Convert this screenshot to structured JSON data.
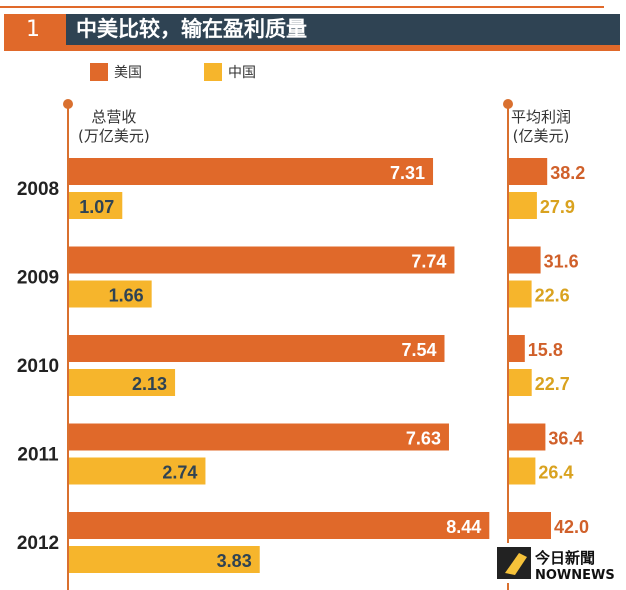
{
  "header": {
    "number": "1",
    "title": "中美比较，输在盈利质量"
  },
  "colors": {
    "us": "#e0692a",
    "china": "#f6b52c",
    "band": "#2f4353"
  },
  "chart_data": [
    {
      "type": "bar",
      "orientation": "horizontal",
      "title": "总营收",
      "unit": "(万亿美元)",
      "categories": [
        "2008",
        "2009",
        "2010",
        "2011",
        "2012"
      ],
      "series": [
        {
          "name": "美国",
          "values": [
            7.31,
            7.74,
            7.54,
            7.63,
            8.44
          ]
        },
        {
          "name": "中国",
          "values": [
            1.07,
            1.66,
            2.13,
            2.74,
            3.83
          ]
        }
      ]
    },
    {
      "type": "bar",
      "orientation": "horizontal",
      "title": "平均利润",
      "unit": "(亿美元)",
      "categories": [
        "2008",
        "2009",
        "2010",
        "2011",
        "2012"
      ],
      "series": [
        {
          "name": "美国",
          "values": [
            38.2,
            31.6,
            15.8,
            36.4,
            42.0
          ]
        },
        {
          "name": "中国",
          "values": [
            27.9,
            22.6,
            22.7,
            26.4,
            null
          ]
        }
      ]
    }
  ],
  "legend": [
    "美国",
    "中国"
  ],
  "watermark": {
    "line1": "今日新聞",
    "line2": "NOWNEWS"
  }
}
